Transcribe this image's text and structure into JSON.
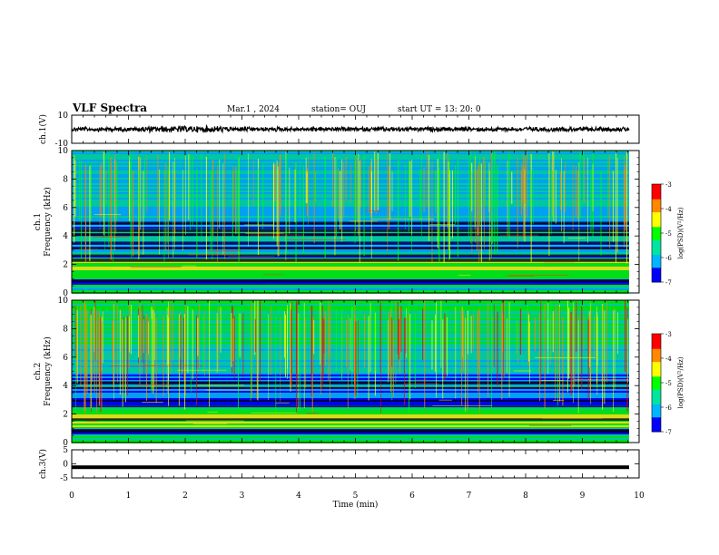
{
  "header": {
    "title": "VLF Spectra",
    "date": "Mar.1  , 2024",
    "station": "station= OUJ",
    "start": "start  UT  =   13: 20: 0"
  },
  "colors": {
    "waveform": "#000000",
    "colormap": [
      "#0000ff",
      "#00b7ff",
      "#00e5a0",
      "#00ff00",
      "#ffff00",
      "#ff8800",
      "#ff0000"
    ],
    "background_noise": "#0b1fa8"
  },
  "chart_data": [
    {
      "type": "line",
      "panel": "ch1-waveform",
      "ylabel": "ch.1(V)",
      "ylim": [
        -10,
        10
      ],
      "yticks": [
        "10",
        "-10"
      ],
      "description_of_trace": "continuous dense trace near 0 V",
      "baseline": 0,
      "amplitude_approx": 1.5
    },
    {
      "type": "heatmap",
      "panel": "ch1-spectrogram",
      "ylabel": "ch.1\nFrequency (kHz)",
      "ylim": [
        0,
        10
      ],
      "yticks": [
        "0",
        "2",
        "4",
        "6",
        "8",
        "10"
      ],
      "colorbar": {
        "label": "log(PSD)(V²/Hz)",
        "ticks": [
          "-3",
          "-4",
          "-5",
          "-6",
          "-7"
        ],
        "range": [
          -7,
          -3
        ]
      }
    },
    {
      "type": "heatmap",
      "panel": "ch2-spectrogram",
      "ylabel": "ch.2\nFrequency (kHz)",
      "ylim": [
        0,
        10
      ],
      "yticks": [
        "0",
        "2",
        "4",
        "6",
        "8",
        "10"
      ],
      "colorbar": {
        "label": "log(PSD)(V²/Hz)",
        "ticks": [
          "-3",
          "-4",
          "-5",
          "-6",
          "-7"
        ],
        "range": [
          -7,
          -3
        ]
      }
    },
    {
      "type": "line",
      "panel": "ch3-waveform",
      "ylabel": "ch.3(V)",
      "ylim": [
        -5,
        5
      ],
      "yticks": [
        "5",
        "0",
        "-5"
      ],
      "baseline": -1.2,
      "amplitude_approx": 0.15
    }
  ],
  "xaxis": {
    "xlabel": "Time  (min)",
    "xlim": [
      0,
      10
    ],
    "ticks": [
      "0",
      "1",
      "2",
      "3",
      "4",
      "5",
      "6",
      "7",
      "8",
      "9",
      "10"
    ]
  }
}
